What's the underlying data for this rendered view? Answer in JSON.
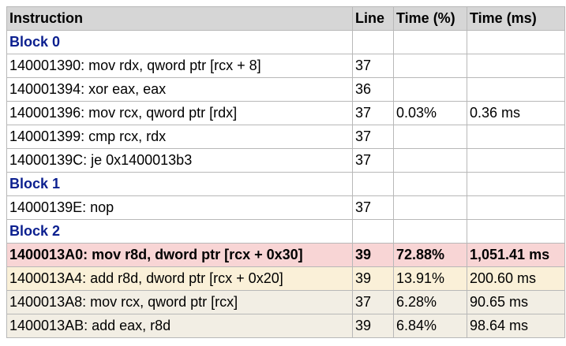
{
  "headers": {
    "instruction": "Instruction",
    "line": "Line",
    "time_pct": "Time (%)",
    "time_ms": "Time (ms)"
  },
  "rows": [
    {
      "kind": "block",
      "label": "Block 0"
    },
    {
      "kind": "instr",
      "instruction": "140001390: mov rdx, qword ptr [rcx + 8]",
      "line": "37",
      "time_pct": "",
      "time_ms": ""
    },
    {
      "kind": "instr",
      "instruction": "140001394: xor eax, eax",
      "line": "36",
      "time_pct": "",
      "time_ms": ""
    },
    {
      "kind": "instr",
      "instruction": "140001396: mov rcx, qword ptr [rdx]",
      "line": "37",
      "time_pct": "0.03%",
      "time_ms": "0.36 ms"
    },
    {
      "kind": "instr",
      "instruction": "140001399: cmp rcx, rdx",
      "line": "37",
      "time_pct": "",
      "time_ms": ""
    },
    {
      "kind": "instr",
      "instruction": "14000139C: je 0x1400013b3",
      "line": "37",
      "time_pct": "",
      "time_ms": ""
    },
    {
      "kind": "block",
      "label": "Block 1"
    },
    {
      "kind": "instr",
      "instruction": "14000139E: nop",
      "line": "37",
      "time_pct": "",
      "time_ms": ""
    },
    {
      "kind": "block",
      "label": "Block 2"
    },
    {
      "kind": "instr",
      "heat": "hot",
      "instruction": "1400013A0: mov r8d, dword ptr [rcx + 0x30]",
      "line": "39",
      "time_pct": "72.88%",
      "time_ms": "1,051.41 ms"
    },
    {
      "kind": "instr",
      "heat": "warm",
      "instruction": "1400013A4: add r8d, dword ptr [rcx + 0x20]",
      "line": "39",
      "time_pct": "13.91%",
      "time_ms": "200.60 ms"
    },
    {
      "kind": "instr",
      "heat": "mild",
      "instruction": "1400013A8: mov rcx, qword ptr [rcx]",
      "line": "37",
      "time_pct": "6.28%",
      "time_ms": "90.65 ms"
    },
    {
      "kind": "instr",
      "heat": "mild",
      "instruction": "1400013AB: add eax, r8d",
      "line": "39",
      "time_pct": "6.84%",
      "time_ms": "98.64 ms"
    }
  ],
  "colors": {
    "block_label": "#0b1f8f",
    "header_bg": "#d6d6d6",
    "hot_bg": "#f8d5d5",
    "warm_bg": "#faf0d8",
    "mild_bg": "#f2eee4"
  }
}
